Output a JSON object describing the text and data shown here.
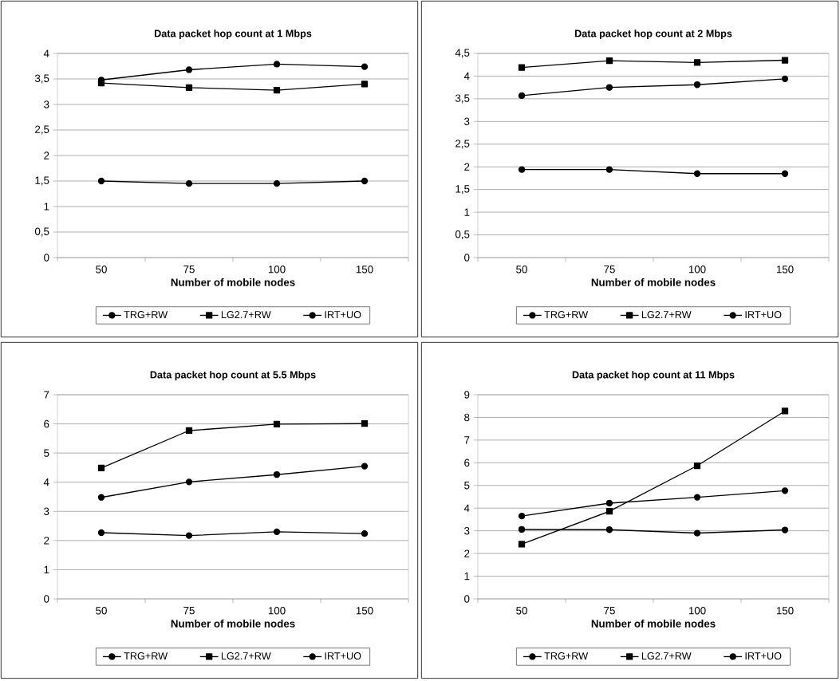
{
  "chart_data": [
    {
      "type": "line",
      "title": "Data packet hop count at 1 Mbps",
      "xlabel": "Number of mobile nodes",
      "categories": [
        "50",
        "75",
        "100",
        "150"
      ],
      "ylim": [
        0,
        4
      ],
      "yticks": [
        0,
        {
          "value": 0.5,
          "label": "0,5"
        },
        1,
        {
          "value": 1.5,
          "label": "1,5"
        },
        2,
        {
          "value": 2.5,
          "label": "2,5"
        },
        3,
        {
          "value": 3.5,
          "label": "3,5"
        },
        4
      ],
      "grid": "y",
      "legend": "bottom",
      "line_style": "solid",
      "series": [
        {
          "name": "TRG+RW",
          "color": "#000000",
          "marker": "circle",
          "values": [
            1.5,
            1.45,
            1.45,
            1.5
          ]
        },
        {
          "name": "LG2.7+RW",
          "color": "#000000",
          "marker": "square",
          "values": [
            3.42,
            3.33,
            3.28,
            3.4
          ]
        },
        {
          "name": "IRT+UO",
          "color": "#000000",
          "marker": "circle",
          "values": [
            3.48,
            3.68,
            3.79,
            3.74
          ]
        }
      ]
    },
    {
      "type": "line",
      "title": "Data packet hop count at 2 Mbps",
      "xlabel": "Number of mobile nodes",
      "categories": [
        "50",
        "75",
        "100",
        "150"
      ],
      "ylim": [
        0,
        4.5
      ],
      "yticks": [
        0,
        {
          "value": 0.5,
          "label": "0,5"
        },
        1,
        {
          "value": 1.5,
          "label": "1,5"
        },
        2,
        {
          "value": 2.5,
          "label": "2,5"
        },
        3,
        {
          "value": 3.5,
          "label": "3,5"
        },
        4,
        {
          "value": 4.5,
          "label": "4,5"
        }
      ],
      "grid": "y",
      "legend": "bottom",
      "line_style": "solid",
      "series": [
        {
          "name": "TRG+RW",
          "color": "#000000",
          "marker": "circle",
          "values": [
            1.94,
            1.94,
            1.85,
            1.85
          ]
        },
        {
          "name": "LG2.7+RW",
          "color": "#000000",
          "marker": "square",
          "values": [
            4.19,
            4.34,
            4.3,
            4.35
          ]
        },
        {
          "name": "IRT+UO",
          "color": "#000000",
          "marker": "circle",
          "values": [
            3.57,
            3.75,
            3.81,
            3.94
          ]
        }
      ]
    },
    {
      "type": "line",
      "title": "Data packet hop count at 5.5 Mbps",
      "xlabel": "Number of mobile nodes",
      "categories": [
        "50",
        "75",
        "100",
        "150"
      ],
      "ylim": [
        0,
        7
      ],
      "yticks": [
        0,
        1,
        2,
        3,
        4,
        5,
        6,
        7
      ],
      "grid": "y",
      "legend": "bottom",
      "line_style": "solid",
      "series": [
        {
          "name": "TRG+RW",
          "color": "#000000",
          "marker": "circle",
          "values": [
            2.27,
            2.17,
            2.3,
            2.24
          ]
        },
        {
          "name": "LG2.7+RW",
          "color": "#000000",
          "marker": "square",
          "values": [
            4.49,
            5.77,
            5.99,
            6.01
          ]
        },
        {
          "name": "IRT+UO",
          "color": "#000000",
          "marker": "circle",
          "values": [
            3.48,
            4.01,
            4.26,
            4.55
          ]
        }
      ]
    },
    {
      "type": "line",
      "title": "Data packet hop count at 11 Mbps",
      "xlabel": "Number of mobile nodes",
      "categories": [
        "50",
        "75",
        "100",
        "150"
      ],
      "ylim": [
        0,
        9
      ],
      "yticks": [
        0,
        1,
        2,
        3,
        4,
        5,
        6,
        7,
        8,
        9
      ],
      "grid": "y",
      "legend": "bottom",
      "line_style": "solid",
      "series": [
        {
          "name": "TRG+RW",
          "color": "#000000",
          "marker": "circle",
          "values": [
            3.06,
            3.05,
            2.9,
            3.04
          ]
        },
        {
          "name": "LG2.7+RW",
          "color": "#000000",
          "marker": "square",
          "values": [
            2.41,
            3.86,
            5.87,
            8.28
          ]
        },
        {
          "name": "IRT+UO",
          "color": "#000000",
          "marker": "circle",
          "values": [
            3.65,
            4.22,
            4.48,
            4.77
          ]
        }
      ]
    }
  ]
}
